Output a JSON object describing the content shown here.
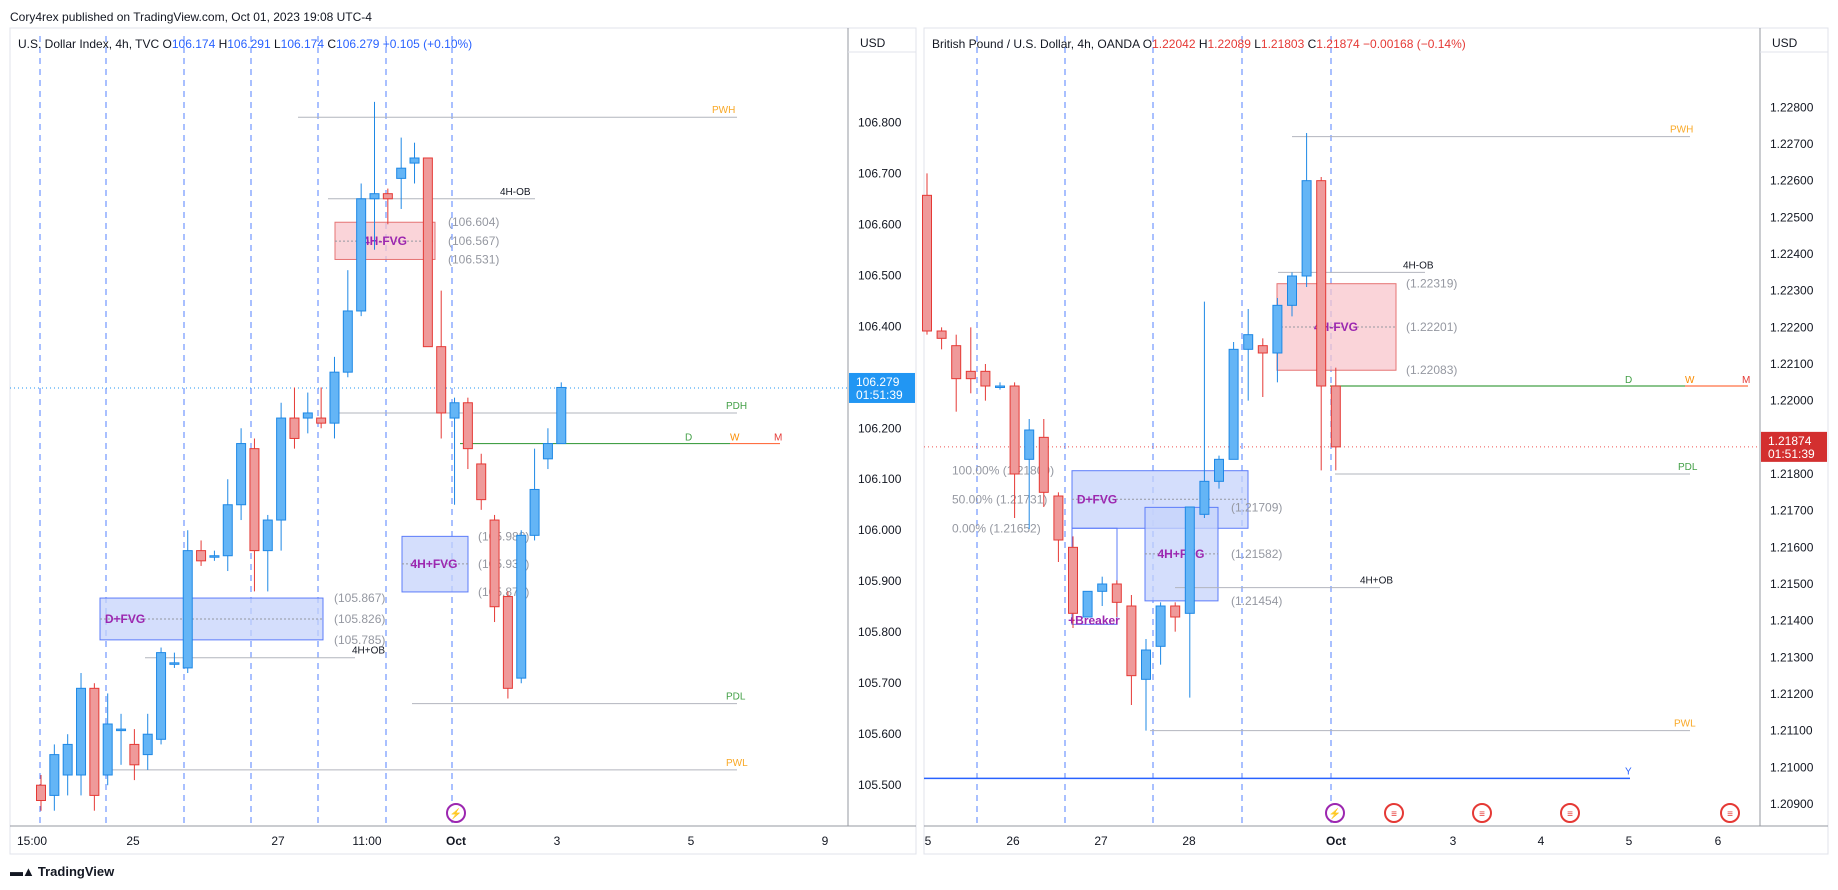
{
  "header": {
    "attribution": "Cory4rex published on TradingView.com, Oct 01, 2023 19:08 UTC-4",
    "brand": "TradingView"
  },
  "colors": {
    "up_fill": "#64b5f6",
    "up_stroke": "#1e88e5",
    "down_fill": "#ef9a9a",
    "down_stroke": "#e53935",
    "grid_dash": "#2962ff",
    "price_blue": "#2196f3",
    "price_red": "#d32f2f",
    "pwh": "#f9a825",
    "pdl": "#43a047",
    "fvg_red": "#f8c6cc",
    "fvg_blue": "#c5d3fb",
    "label_purple": "#9c27b0"
  },
  "chart_data": [
    {
      "type": "candlestick",
      "title": "U.S. Dollar Index, 4h, TVC",
      "ohlc_legend": {
        "o_label": "O",
        "o": "106.174",
        "h_label": "H",
        "h": "106.291",
        "l_label": "L",
        "l": "106.174",
        "c_label": "C",
        "c": "106.279",
        "change": "+0.105 (+0.10%)"
      },
      "currency": "USD",
      "ylim": [
        105.42,
        106.93
      ],
      "y_ticks": [
        "106.800",
        "106.700",
        "106.600",
        "106.500",
        "106.400",
        "106.300",
        "106.200",
        "106.100",
        "106.000",
        "105.900",
        "105.800",
        "105.700",
        "105.600",
        "105.500"
      ],
      "x_ticks": [
        "15:00",
        "25",
        "27",
        "11:00",
        "Oct",
        "3",
        "5",
        "9"
      ],
      "last_price": "106.279",
      "countdown": "01:51:39",
      "candles": [
        [
          105.5,
          105.52,
          105.45,
          105.47
        ],
        [
          105.48,
          105.58,
          105.45,
          105.56
        ],
        [
          105.52,
          105.6,
          105.48,
          105.58
        ],
        [
          105.52,
          105.72,
          105.48,
          105.69
        ],
        [
          105.69,
          105.7,
          105.45,
          105.48
        ],
        [
          105.52,
          105.68,
          105.5,
          105.62
        ],
        [
          105.61,
          105.64,
          105.54,
          105.61
        ],
        [
          105.58,
          105.61,
          105.51,
          105.54
        ],
        [
          105.56,
          105.64,
          105.53,
          105.6
        ],
        [
          105.59,
          105.77,
          105.58,
          105.76
        ],
        [
          105.74,
          105.76,
          105.73,
          105.74
        ],
        [
          105.73,
          106.0,
          105.72,
          105.96
        ],
        [
          105.96,
          105.98,
          105.93,
          105.94
        ],
        [
          105.95,
          105.96,
          105.94,
          105.95
        ],
        [
          105.95,
          106.1,
          105.92,
          106.05
        ],
        [
          106.05,
          106.2,
          106.02,
          106.17
        ],
        [
          106.16,
          106.18,
          105.88,
          105.96
        ],
        [
          105.96,
          106.03,
          105.88,
          106.02
        ],
        [
          106.02,
          106.25,
          105.96,
          106.22
        ],
        [
          106.22,
          106.28,
          106.16,
          106.18
        ],
        [
          106.22,
          106.27,
          106.19,
          106.23
        ],
        [
          106.22,
          106.28,
          106.2,
          106.21
        ],
        [
          106.21,
          106.34,
          106.18,
          106.31
        ],
        [
          106.31,
          106.51,
          106.3,
          106.43
        ],
        [
          106.43,
          106.68,
          106.42,
          106.65
        ],
        [
          106.65,
          106.84,
          106.55,
          106.66
        ],
        [
          106.66,
          106.67,
          106.6,
          106.65
        ],
        [
          106.69,
          106.77,
          106.63,
          106.71
        ],
        [
          106.72,
          106.76,
          106.68,
          106.73
        ],
        [
          106.73,
          106.73,
          106.36,
          106.36
        ],
        [
          106.36,
          106.47,
          106.18,
          106.23
        ],
        [
          106.22,
          106.26,
          106.05,
          106.25
        ],
        [
          106.25,
          106.26,
          106.12,
          106.16
        ],
        [
          106.13,
          106.15,
          106.04,
          106.06
        ],
        [
          106.02,
          106.03,
          105.82,
          105.85
        ],
        [
          105.87,
          105.88,
          105.67,
          105.69
        ],
        [
          105.71,
          106.0,
          105.7,
          105.99
        ],
        [
          105.99,
          106.16,
          105.98,
          106.08
        ],
        [
          106.14,
          106.2,
          106.12,
          106.17
        ],
        [
          106.17,
          106.29,
          106.17,
          106.28
        ]
      ],
      "levels": [
        {
          "label": "PWH",
          "value": 106.81
        },
        {
          "label": "PDH",
          "value": 106.23
        },
        {
          "label": "PDL",
          "value": 105.66
        },
        {
          "label": "PWL",
          "value": 105.53
        },
        {
          "label": "4H-OB",
          "value": 106.65
        },
        {
          "label": "4H+OB",
          "value": 105.75
        }
      ],
      "open_levels": {
        "labels": [
          "D",
          "W",
          "M"
        ],
        "value": 106.17
      },
      "zones": [
        {
          "label": "4H-FVG",
          "top": 106.604,
          "mid": 106.567,
          "bottom": 106.531,
          "texts": [
            "(106.604)",
            "(106.567)",
            "(106.531)"
          ]
        },
        {
          "label": "4H+FVG",
          "top": 105.988,
          "mid": 105.934,
          "bottom": 105.879,
          "texts": [
            "(105.988)",
            "(105.934)",
            "(105.879)"
          ]
        },
        {
          "label": "D+FVG",
          "top": 105.867,
          "mid": 105.826,
          "bottom": 105.785,
          "texts": [
            "(105.867)",
            "(105.826)",
            "(105.785)"
          ]
        }
      ]
    },
    {
      "type": "candlestick",
      "title": "British Pound / U.S. Dollar, 4h, OANDA",
      "ohlc_legend": {
        "o_label": "O",
        "o": "1.22042",
        "h_label": "H",
        "h": "1.22089",
        "l_label": "L",
        "l": "1.21803",
        "c_label": "C",
        "c": "1.21874",
        "change": "−0.00168 (−0.14%)"
      },
      "currency": "USD",
      "ylim": [
        1.2084,
        1.2294
      ],
      "y_ticks": [
        "1.22800",
        "1.22700",
        "1.22600",
        "1.22500",
        "1.22400",
        "1.22300",
        "1.22200",
        "1.22100",
        "1.22000",
        "1.21900",
        "1.21800",
        "1.21700",
        "1.21600",
        "1.21500",
        "1.21400",
        "1.21300",
        "1.21200",
        "1.21100",
        "1.21000",
        "1.20900"
      ],
      "x_ticks": [
        "5",
        "26",
        "27",
        "28",
        "Oct",
        "3",
        "4",
        "5",
        "6"
      ],
      "last_price": "1.21874",
      "countdown": "01:51:39",
      "candles": [
        [
          1.2256,
          1.2262,
          1.2218,
          1.2219
        ],
        [
          1.2219,
          1.222,
          1.2214,
          1.2217
        ],
        [
          1.2215,
          1.2218,
          1.2197,
          1.2206
        ],
        [
          1.2208,
          1.222,
          1.2202,
          1.2206
        ],
        [
          1.2208,
          1.221,
          1.22,
          1.2204
        ],
        [
          1.2204,
          1.2205,
          1.2203,
          1.2204
        ],
        [
          1.2204,
          1.2205,
          1.2168,
          1.218
        ],
        [
          1.2184,
          1.2195,
          1.2165,
          1.2192
        ],
        [
          1.219,
          1.2195,
          1.2171,
          1.2175
        ],
        [
          1.2174,
          1.2175,
          1.2156,
          1.2162
        ],
        [
          1.216,
          1.2163,
          1.2138,
          1.2142
        ],
        [
          1.2141,
          1.2148,
          1.2142,
          1.2148
        ],
        [
          1.2148,
          1.2152,
          1.2144,
          1.215
        ],
        [
          1.215,
          1.2151,
          1.2141,
          1.2145
        ],
        [
          1.2144,
          1.2147,
          1.2117,
          1.2125
        ],
        [
          1.2124,
          1.2135,
          1.211,
          1.2132
        ],
        [
          1.2133,
          1.2145,
          1.2128,
          1.2144
        ],
        [
          1.2144,
          1.2145,
          1.2137,
          1.2141
        ],
        [
          1.2142,
          1.217,
          1.2119,
          1.2171
        ],
        [
          1.2169,
          1.2227,
          1.2168,
          1.2178
        ],
        [
          1.2178,
          1.2185,
          1.2176,
          1.2184
        ],
        [
          1.2184,
          1.2216,
          1.2184,
          1.2214
        ],
        [
          1.2214,
          1.2225,
          1.22,
          1.2218
        ],
        [
          1.2215,
          1.2217,
          1.2201,
          1.2213
        ],
        [
          1.2213,
          1.2228,
          1.2205,
          1.2226
        ],
        [
          1.2226,
          1.2235,
          1.2223,
          1.2234
        ],
        [
          1.2234,
          1.2273,
          1.2231,
          1.226
        ],
        [
          1.226,
          1.2261,
          1.2181,
          1.2204
        ],
        [
          1.2204,
          1.2209,
          1.2181,
          1.21874
        ]
      ],
      "levels": [
        {
          "label": "PWH",
          "value": 1.2272
        },
        {
          "label": "PDL",
          "value": 1.218
        },
        {
          "label": "PWL",
          "value": 1.211
        },
        {
          "label": "4H-OB",
          "value": 1.2235
        },
        {
          "label": "4H+OB",
          "value": 1.2149
        },
        {
          "label": "Y",
          "value": 1.2097
        }
      ],
      "open_levels": {
        "labels": [
          "D",
          "W",
          "M"
        ],
        "value": 1.2204
      },
      "zones": [
        {
          "label": "4H-FVG",
          "top": 1.22319,
          "mid": 1.22201,
          "bottom": 1.22083,
          "texts": [
            "(1.22319)",
            "(1.22201)",
            "(1.22083)"
          ]
        },
        {
          "label": "D+FVG",
          "top": 1.21809,
          "mid": 1.21731,
          "bottom": 1.21652,
          "texts": [
            "100.00% (1.21809)",
            "50.00% (1.21731)",
            "0.00% (1.21652)"
          ]
        },
        {
          "label": "4H+FVG",
          "top": 1.21709,
          "mid": 1.21582,
          "bottom": 1.21454,
          "texts": [
            "(1.21709)",
            "(1.21582)",
            "(1.21454)"
          ]
        },
        {
          "label": "+Breaker",
          "top": 1.21652,
          "bottom": 1.2139
        }
      ]
    }
  ]
}
